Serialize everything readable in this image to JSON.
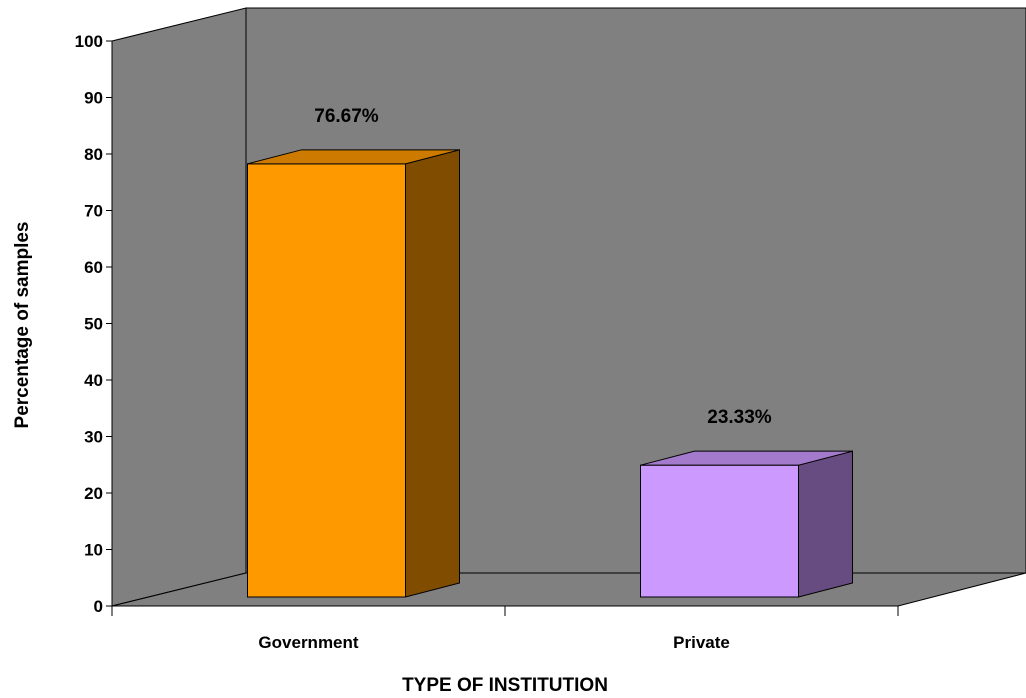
{
  "chart_data": {
    "type": "bar",
    "categories": [
      "Government",
      "Private"
    ],
    "values": [
      76.67,
      23.33
    ],
    "data_labels": [
      "76.67%",
      "23.33%"
    ],
    "xlabel": "TYPE OF INSTITUTION",
    "ylabel": "Percentage of samples",
    "ylim": [
      0,
      100
    ],
    "yticks": [
      0,
      10,
      20,
      30,
      40,
      50,
      60,
      70,
      80,
      90,
      100
    ],
    "grid": false,
    "legend": "none",
    "three_d": true,
    "colors": {
      "wall": "#808080",
      "floor": "#808080",
      "series": [
        "#FF9900",
        "#CC99FF"
      ],
      "series_side": [
        "#7F4C00",
        "#664C80"
      ],
      "series_top": [
        "#CC7A00",
        "#A37ACC"
      ]
    }
  }
}
